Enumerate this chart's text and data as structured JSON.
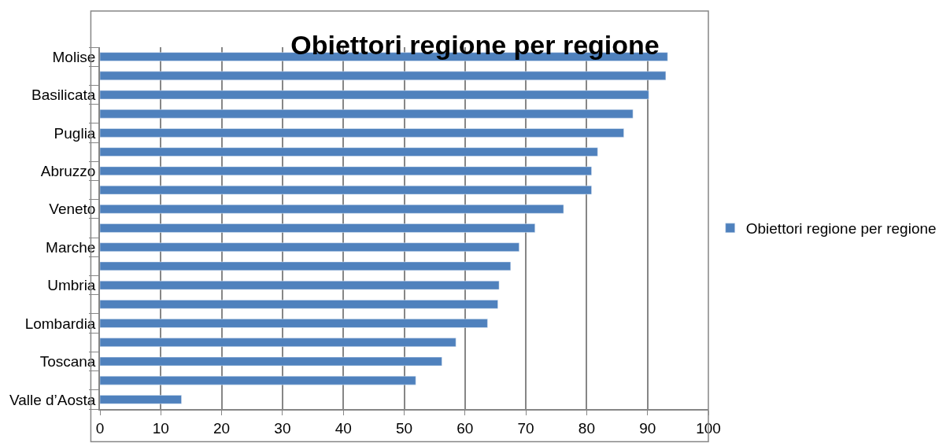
{
  "chart_data": {
    "type": "bar",
    "orientation": "horizontal",
    "title": "Obiettori regione per regione",
    "categories": [
      "Molise",
      null,
      "Basilicata",
      null,
      "Puglia",
      null,
      "Abruzzo",
      null,
      "Veneto",
      null,
      "Marche",
      null,
      "Umbria",
      null,
      "Lombardia",
      null,
      "Toscana",
      null,
      "Valle d’Aosta"
    ],
    "series": [
      {
        "name": "Obiettori regione per regione",
        "color": "#4f81bd",
        "values": [
          93.3,
          93.0,
          90.2,
          87.6,
          86.1,
          81.8,
          80.8,
          80.8,
          76.2,
          71.5,
          68.9,
          67.5,
          65.6,
          65.4,
          63.7,
          58.5,
          56.2,
          51.9,
          13.4
        ]
      }
    ],
    "xlim": [
      0,
      100
    ],
    "xticks": [
      0,
      10,
      20,
      30,
      40,
      50,
      60,
      70,
      80,
      90,
      100
    ],
    "grid": "x",
    "legend": "right"
  }
}
